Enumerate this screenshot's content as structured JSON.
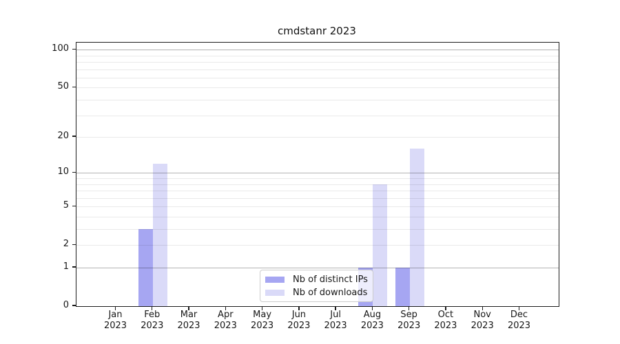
{
  "chart_data": {
    "type": "bar",
    "title": "cmdstanr 2023",
    "categories": [
      "Jan 2023",
      "Feb 2023",
      "Mar 2023",
      "Apr 2023",
      "May 2023",
      "Jun 2023",
      "Jul 2023",
      "Aug 2023",
      "Sep 2023",
      "Oct 2023",
      "Nov 2023",
      "Dec 2023"
    ],
    "series": [
      {
        "name": "Nb of distinct IPs",
        "values": [
          0,
          3,
          0,
          0,
          0,
          0,
          0,
          1,
          1,
          0,
          0,
          0
        ],
        "color": "#a6a6f2"
      },
      {
        "name": "Nb of downloads",
        "values": [
          0,
          12,
          0,
          0,
          0,
          0,
          0,
          8,
          16,
          0,
          0,
          0
        ],
        "color": "#dadaf8"
      }
    ],
    "y_axis": {
      "scale": "log1p",
      "tick_labels": [
        0,
        1,
        2,
        5,
        10,
        20,
        50,
        100
      ],
      "major_gridlines": [
        1,
        10,
        100
      ],
      "minor_gridlines": [
        2,
        3,
        4,
        5,
        6,
        7,
        8,
        9,
        20,
        30,
        40,
        50,
        60,
        70,
        80,
        90
      ],
      "ylim": [
        0,
        115
      ]
    },
    "xlabel": "",
    "ylabel": "",
    "grid": true,
    "legend_position": "lower center"
  },
  "colors": {
    "bar_distinct_ips": "#a6a6f2",
    "bar_downloads": "#dadaf8",
    "major_grid": "#b2b2b2",
    "minor_grid": "#e9e9e9",
    "spine": "#1b1b1b",
    "text": "#161616",
    "legend_border": "#cccccc"
  }
}
